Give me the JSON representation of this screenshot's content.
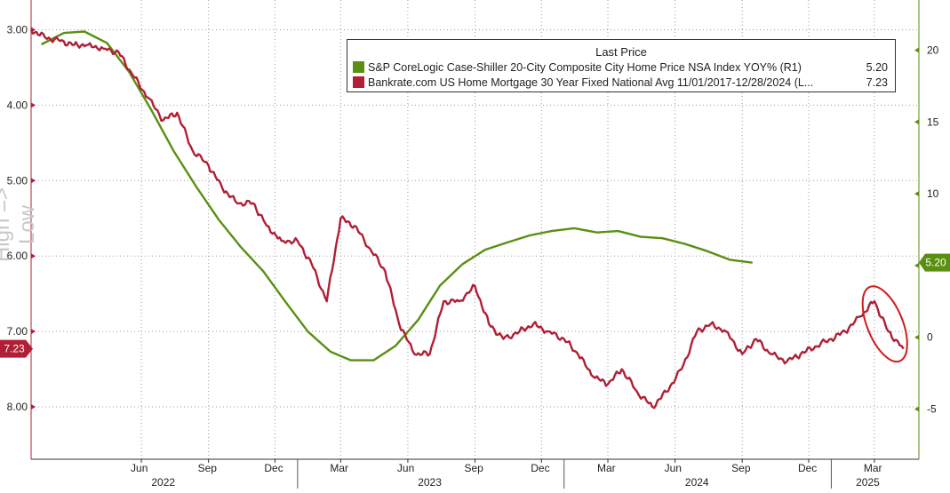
{
  "chart_data": {
    "type": "line",
    "legend": {
      "title": "Last Price",
      "placement": "top-right",
      "entries": [
        {
          "label": "S&P CoreLogic Case-Shiller 20-City Composite City Home Price NSA Index YOY%  (R1)",
          "value": "5.20",
          "color": "#5a8f12"
        },
        {
          "label": "Bankrate.com US Home Mortgage 30 Year Fixed National Avg 11/01/2017-12/28/2024   (L...",
          "value": "7.23",
          "color": "#b01f35"
        }
      ]
    },
    "ylabel_left": "High => Low",
    "left_axis": {
      "inverted": true,
      "range": [
        2.7,
        8.6
      ],
      "ticks": [
        "3.00",
        "4.00",
        "5.00",
        "6.00",
        "7.00",
        "8.00"
      ],
      "last_value_tag": "7.23"
    },
    "right_axis": {
      "range": [
        -8,
        23
      ],
      "ticks": [
        "20",
        "15",
        "10",
        "5",
        "0",
        "-5"
      ],
      "last_value_tag": "5.20"
    },
    "x_axis": {
      "months": [
        "Jun",
        "Sep",
        "Dec",
        "Mar",
        "Jun",
        "Sep",
        "Dec",
        "Mar",
        "Jun",
        "Sep",
        "Dec",
        "Mar"
      ],
      "years": [
        "2022",
        "2023",
        "2024",
        "2025"
      ]
    },
    "grid": true,
    "series": [
      {
        "axis": "right",
        "color": "#5a8f12",
        "x": [
          "2022-01",
          "2022-02",
          "2022-03",
          "2022-04",
          "2022-05",
          "2022-06",
          "2022-07",
          "2022-08",
          "2022-09",
          "2022-10",
          "2022-11",
          "2022-12",
          "2023-01",
          "2023-02",
          "2023-03",
          "2023-04",
          "2023-05",
          "2023-06",
          "2023-07",
          "2023-08",
          "2023-09",
          "2023-10",
          "2023-11",
          "2023-12",
          "2024-01",
          "2024-02",
          "2024-03",
          "2024-04",
          "2024-05",
          "2024-06",
          "2024-07",
          "2024-08",
          "2024-09"
        ],
        "values": [
          20.4,
          21.2,
          21.3,
          20.5,
          18.5,
          15.8,
          13.0,
          10.5,
          8.2,
          6.3,
          4.6,
          2.5,
          0.4,
          -1.0,
          -1.6,
          -1.6,
          -0.6,
          1.2,
          3.6,
          5.1,
          6.1,
          6.6,
          7.1,
          7.4,
          7.6,
          7.3,
          7.4,
          7.0,
          6.9,
          6.5,
          6.0,
          5.4,
          5.2
        ]
      },
      {
        "axis": "left",
        "color": "#b01f35",
        "x": [
          "2022-01-01",
          "2022-01-20",
          "2022-02-10",
          "2022-03-01",
          "2022-03-20",
          "2022-04-10",
          "2022-05-01",
          "2022-05-20",
          "2022-06-10",
          "2022-07-01",
          "2022-07-20",
          "2022-08-10",
          "2022-09-01",
          "2022-09-20",
          "2022-10-10",
          "2022-11-01",
          "2022-11-20",
          "2022-12-10",
          "2023-01-01",
          "2023-01-20",
          "2023-02-10",
          "2023-03-01",
          "2023-03-20",
          "2023-04-10",
          "2023-05-01",
          "2023-05-20",
          "2023-06-10",
          "2023-07-01",
          "2023-07-20",
          "2023-08-10",
          "2023-09-01",
          "2023-09-20",
          "2023-10-10",
          "2023-11-01",
          "2023-11-20",
          "2023-12-10",
          "2024-01-01",
          "2024-01-20",
          "2024-02-10",
          "2024-03-01",
          "2024-03-20",
          "2024-04-10",
          "2024-05-01",
          "2024-05-20",
          "2024-06-10",
          "2024-07-01",
          "2024-07-20",
          "2024-08-10",
          "2024-09-01",
          "2024-09-20",
          "2024-10-10",
          "2024-11-01",
          "2024-11-20",
          "2024-12-10",
          "2025-01-01",
          "2025-01-20",
          "2025-02-10",
          "2025-03-01",
          "2025-03-20",
          "2025-04-10"
        ],
        "values": [
          3.0,
          3.1,
          3.15,
          3.2,
          3.2,
          3.25,
          3.3,
          3.6,
          3.9,
          4.2,
          4.1,
          4.6,
          4.8,
          5.1,
          5.3,
          5.3,
          5.6,
          5.8,
          5.8,
          6.1,
          6.6,
          5.5,
          5.6,
          5.9,
          6.2,
          6.9,
          7.3,
          7.3,
          6.6,
          6.6,
          6.4,
          6.9,
          7.1,
          7.0,
          6.9,
          7.0,
          7.1,
          7.3,
          7.6,
          7.7,
          7.5,
          7.8,
          8.0,
          7.8,
          7.5,
          7.0,
          6.9,
          7.0,
          7.3,
          7.1,
          7.3,
          7.4,
          7.3,
          7.2,
          7.1,
          7.0,
          6.8,
          6.6,
          7.0,
          7.23
        ]
      }
    ]
  }
}
